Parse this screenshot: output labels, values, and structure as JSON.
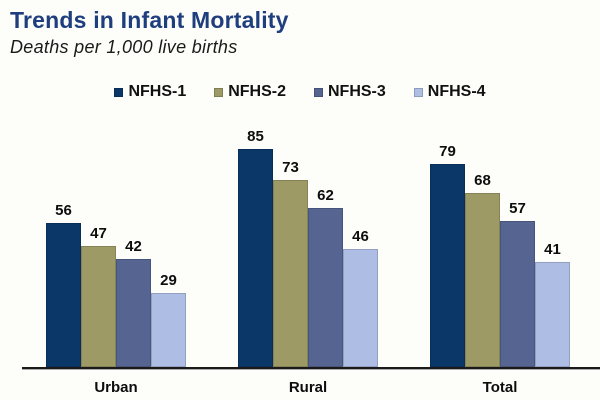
{
  "header": {
    "title": "Trends in Infant Mortality",
    "subtitle": "Deaths per 1,000 live births"
  },
  "theme": {
    "background": "#fdfdfa",
    "title_color": "#1e3e7d",
    "text_color": "#111111",
    "axis_line_color": "#1a1a1a"
  },
  "chart_data": {
    "type": "bar",
    "title": "Trends in Infant Mortality",
    "subtitle": "Deaths per 1,000 live births",
    "categories": [
      "Urban",
      "Rural",
      "Total"
    ],
    "series": [
      {
        "name": "NFHS-1",
        "color": "#0b3768",
        "values": [
          56,
          85,
          79
        ]
      },
      {
        "name": "NFHS-2",
        "color": "#9d9a66",
        "values": [
          47,
          73,
          68
        ]
      },
      {
        "name": "NFHS-3",
        "color": "#556490",
        "values": [
          42,
          62,
          57
        ]
      },
      {
        "name": "NFHS-4",
        "color": "#aebde4",
        "values": [
          29,
          46,
          41
        ]
      }
    ],
    "ylim": [
      0,
      88
    ],
    "value_labels": true,
    "grid": false,
    "legend_position": "top-center",
    "xlabel": "",
    "ylabel": ""
  }
}
